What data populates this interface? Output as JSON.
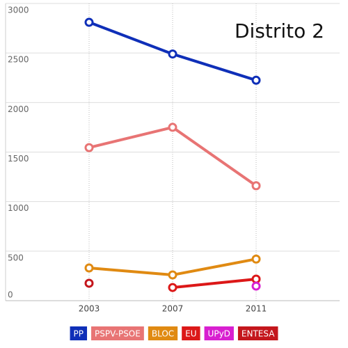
{
  "chart_data": {
    "type": "line",
    "title": "Distrito 2",
    "x": [
      2003,
      2007,
      2011
    ],
    "xlim": [
      1999,
      2015
    ],
    "xticks": [
      2003,
      2007,
      2011
    ],
    "ylim": [
      0,
      3000
    ],
    "yticks": [
      0,
      500,
      1000,
      1500,
      2000,
      2500,
      3000
    ],
    "grid": true,
    "series": [
      {
        "name": "PP",
        "color": "#0f2fb8",
        "values": [
          2810,
          2490,
          2225
        ]
      },
      {
        "name": "PSPV-PSOE",
        "color": "#e87474",
        "values": [
          1545,
          1750,
          1160
        ]
      },
      {
        "name": "BLOC",
        "color": "#e08a12",
        "values": [
          330,
          260,
          420
        ]
      },
      {
        "name": "EU",
        "color": "#dc1818",
        "values": [
          null,
          133,
          218
        ]
      },
      {
        "name": "UPyD",
        "color": "#d81fd0",
        "values": [
          null,
          null,
          147
        ]
      },
      {
        "name": "ENTESA",
        "color": "#c4161c",
        "values": [
          176,
          null,
          null
        ]
      }
    ]
  }
}
